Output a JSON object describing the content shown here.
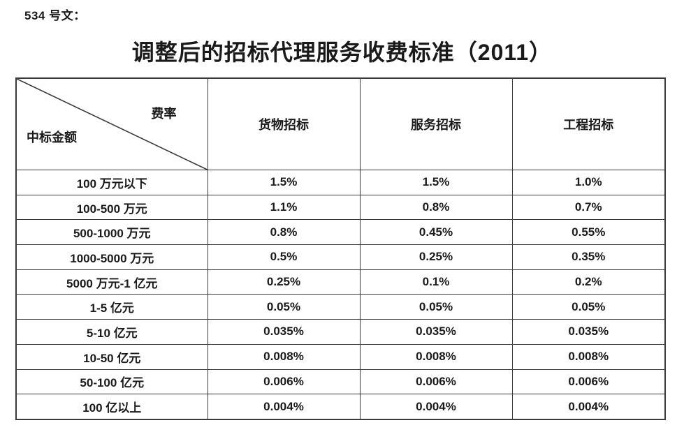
{
  "doc_label": "534 号文：",
  "title": "调整后的招标代理服务收费标准（2011）",
  "table": {
    "corner": {
      "top_right": "费率",
      "bottom_left": "中标金额"
    },
    "columns": [
      "货物招标",
      "服务招标",
      "工程招标"
    ],
    "rows": [
      {
        "label": "100 万元以下",
        "values": [
          "1.5%",
          "1.5%",
          "1.0%"
        ]
      },
      {
        "label": "100-500 万元",
        "values": [
          "1.1%",
          "0.8%",
          "0.7%"
        ]
      },
      {
        "label": "500-1000 万元",
        "values": [
          "0.8%",
          "0.45%",
          "0.55%"
        ]
      },
      {
        "label": "1000-5000 万元",
        "values": [
          "0.5%",
          "0.25%",
          "0.35%"
        ]
      },
      {
        "label": "5000 万元-1 亿元",
        "values": [
          "0.25%",
          "0.1%",
          "0.2%"
        ]
      },
      {
        "label": "1-5 亿元",
        "values": [
          "0.05%",
          "0.05%",
          "0.05%"
        ]
      },
      {
        "label": "5-10 亿元",
        "values": [
          "0.035%",
          "0.035%",
          "0.035%"
        ]
      },
      {
        "label": "10-50 亿元",
        "values": [
          "0.008%",
          "0.008%",
          "0.008%"
        ]
      },
      {
        "label": "50-100 亿元",
        "values": [
          "0.006%",
          "0.006%",
          "0.006%"
        ]
      },
      {
        "label": "100 亿以上",
        "values": [
          "0.004%",
          "0.004%",
          "0.004%"
        ]
      }
    ]
  },
  "colors": {
    "text": "#1a1a1a",
    "border": "#3a3a3a",
    "background": "#ffffff"
  }
}
